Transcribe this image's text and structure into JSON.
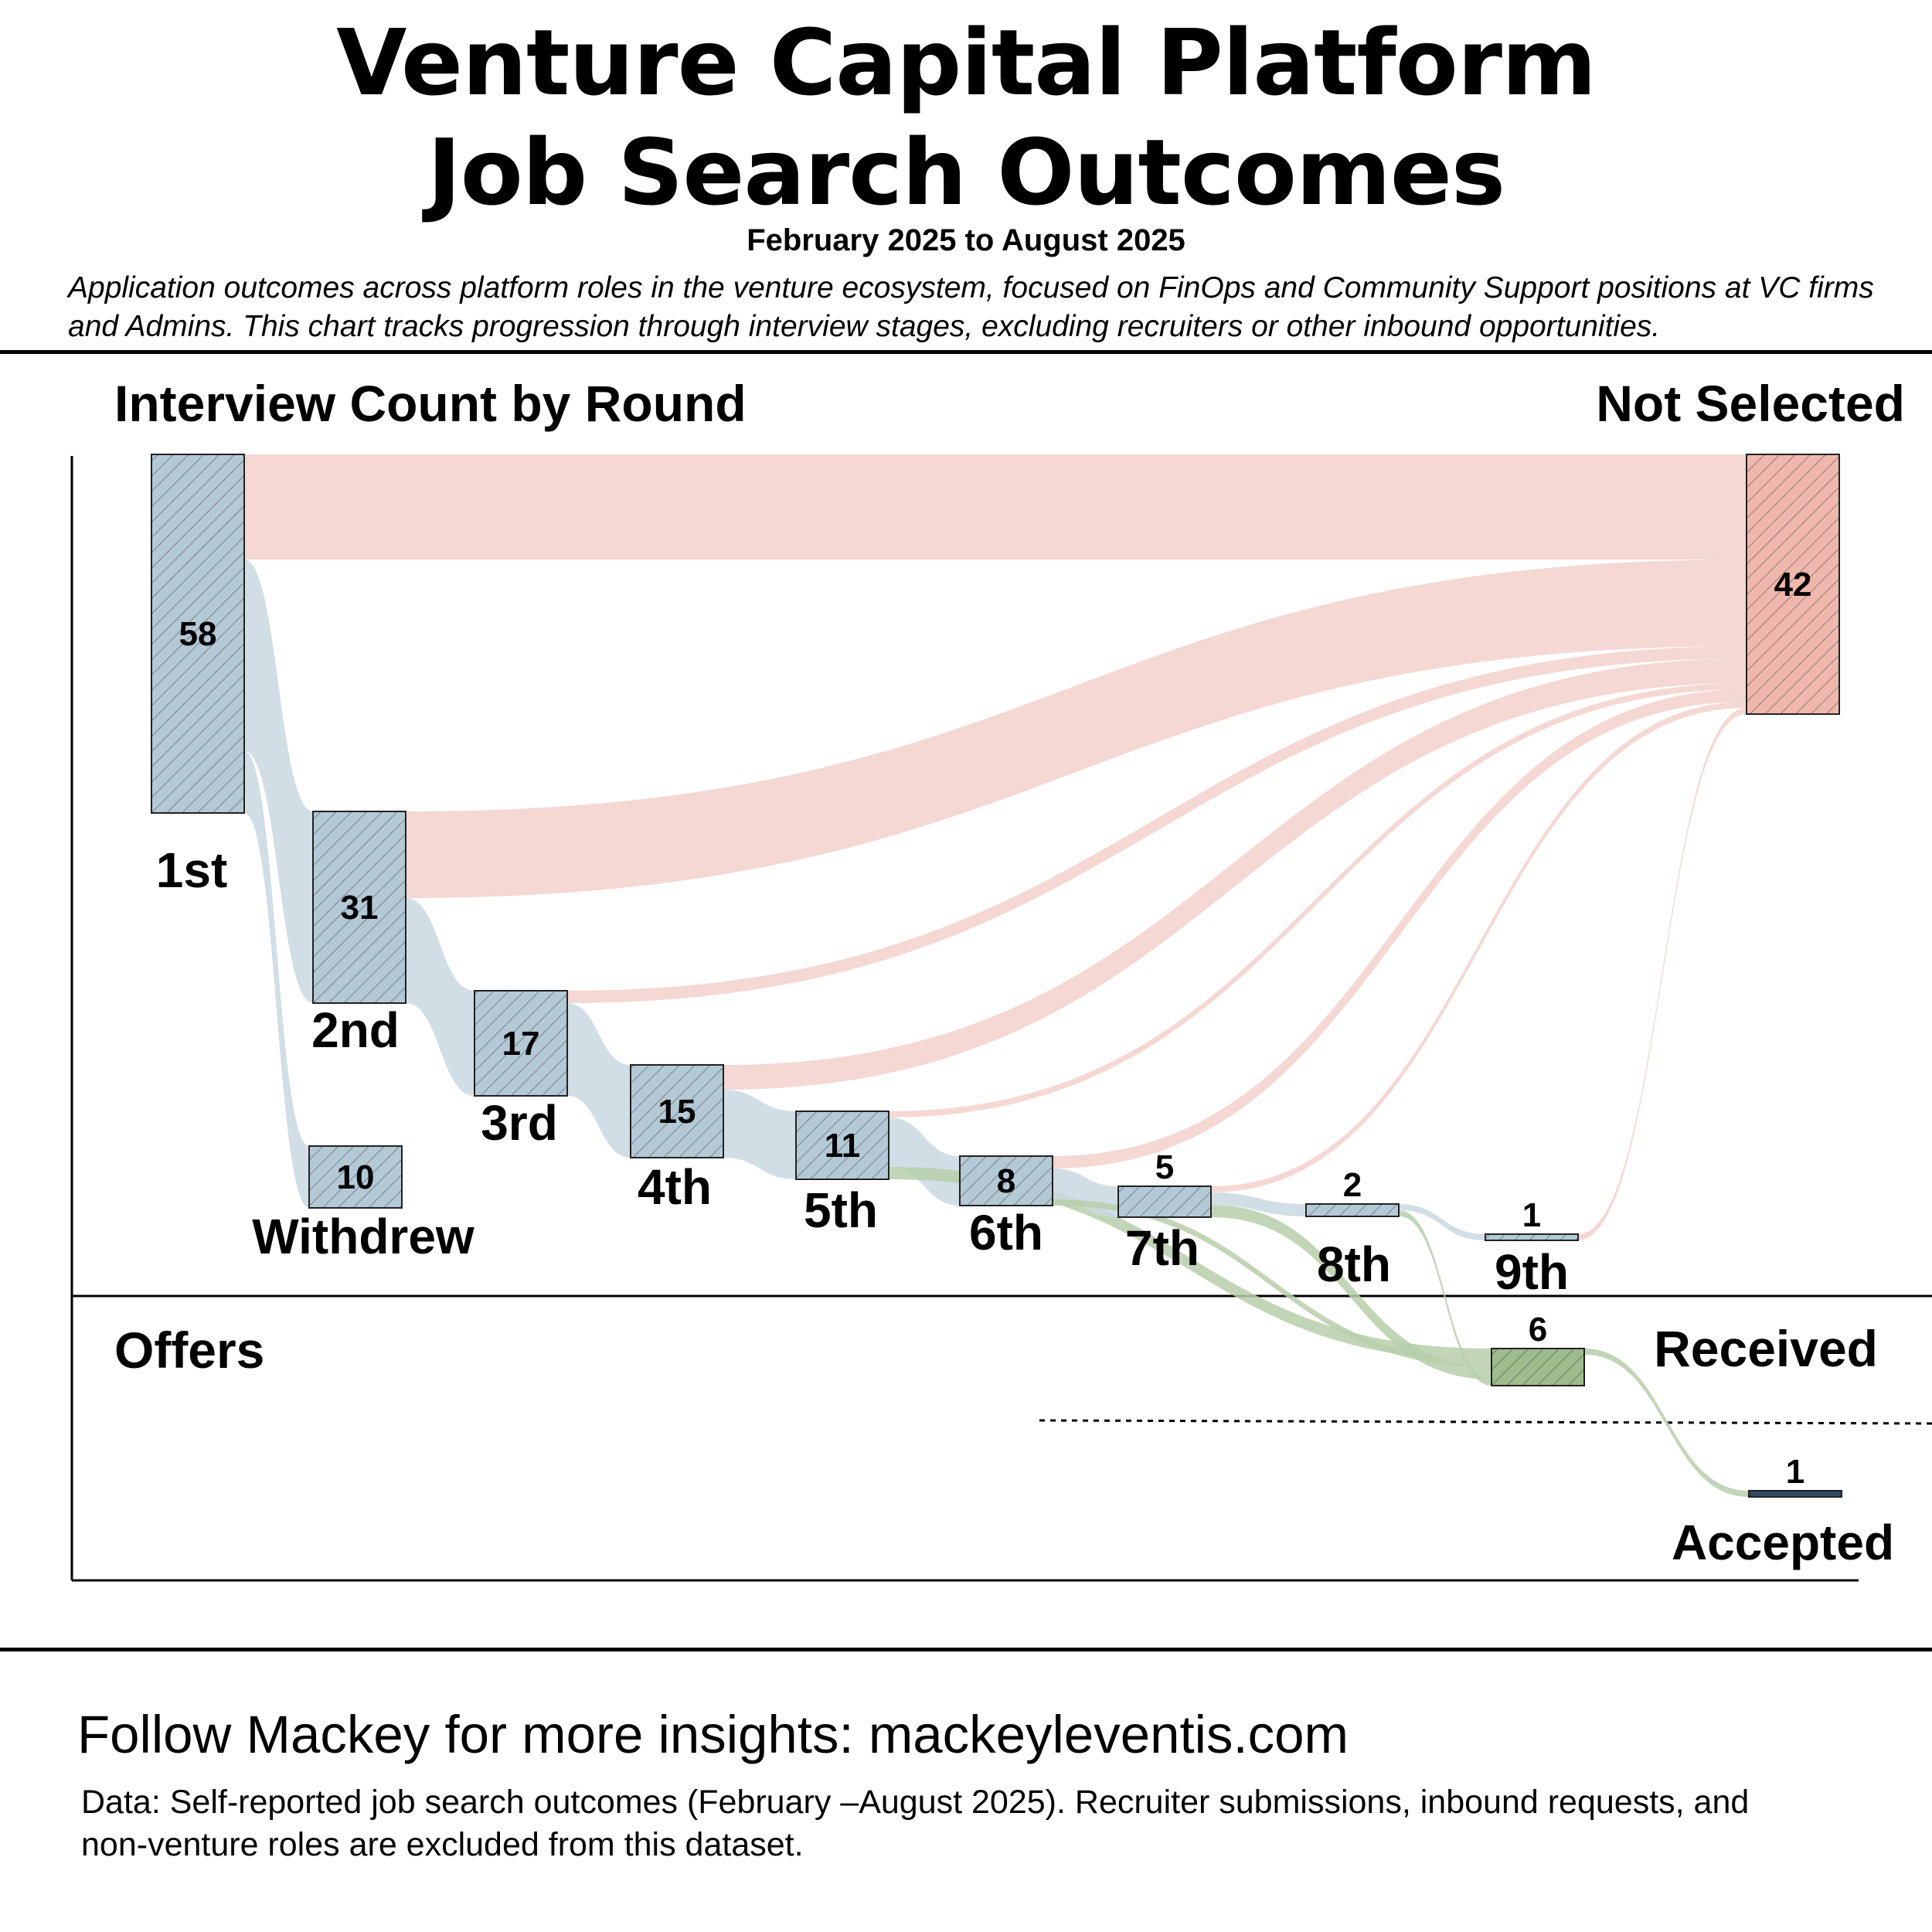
{
  "header": {
    "title_line1": "Venture Capital Platform",
    "title_line2": "Job Search Outcomes",
    "subtitle": "February 2025 to August 2025",
    "description": "Application outcomes across platform roles in the venture ecosystem, focused on FinOps and Community Support positions at VC firms and Admins. This chart tracks progression through interview stages, excluding recruiters or other inbound opportunities."
  },
  "chart_data": {
    "type": "sankey",
    "section_titles": {
      "interviews": "Interview Count by Round",
      "offers": "Offers",
      "not_selected": "Not Selected",
      "received": "Received"
    },
    "nodes": [
      {
        "id": "r1",
        "label": "1st",
        "value": 58
      },
      {
        "id": "r2",
        "label": "2nd",
        "value": 31
      },
      {
        "id": "r3",
        "label": "3rd",
        "value": 17
      },
      {
        "id": "r4",
        "label": "4th",
        "value": 15
      },
      {
        "id": "r5",
        "label": "5th",
        "value": 11
      },
      {
        "id": "r6",
        "label": "6th",
        "value": 8
      },
      {
        "id": "r7",
        "label": "7th",
        "value": 5
      },
      {
        "id": "r8",
        "label": "8th",
        "value": 2
      },
      {
        "id": "r9",
        "label": "9th",
        "value": 1
      },
      {
        "id": "withdrew",
        "label": "Withdrew",
        "value": 10
      },
      {
        "id": "notsel",
        "label": "Not Selected",
        "value": 42
      },
      {
        "id": "received",
        "label": "Received",
        "value": 6
      },
      {
        "id": "accepted",
        "label": "Accepted",
        "value": 1
      }
    ],
    "links": [
      {
        "source": "r1",
        "target": "notsel",
        "value": 17
      },
      {
        "source": "r1",
        "target": "r2",
        "value": 31
      },
      {
        "source": "r1",
        "target": "withdrew",
        "value": 10
      },
      {
        "source": "r2",
        "target": "notsel",
        "value": 14
      },
      {
        "source": "r2",
        "target": "r3",
        "value": 17
      },
      {
        "source": "r3",
        "target": "notsel",
        "value": 2
      },
      {
        "source": "r3",
        "target": "r4",
        "value": 15
      },
      {
        "source": "r4",
        "target": "notsel",
        "value": 4
      },
      {
        "source": "r4",
        "target": "r5",
        "value": 11
      },
      {
        "source": "r5",
        "target": "notsel",
        "value": 1
      },
      {
        "source": "r5",
        "target": "r6",
        "value": 8
      },
      {
        "source": "r5",
        "target": "received",
        "value": 2
      },
      {
        "source": "r6",
        "target": "notsel",
        "value": 2
      },
      {
        "source": "r6",
        "target": "r7",
        "value": 5
      },
      {
        "source": "r6",
        "target": "received",
        "value": 1
      },
      {
        "source": "r7",
        "target": "notsel",
        "value": 1
      },
      {
        "source": "r7",
        "target": "r8",
        "value": 2
      },
      {
        "source": "r7",
        "target": "received",
        "value": 2
      },
      {
        "source": "r8",
        "target": "r9",
        "value": 1
      },
      {
        "source": "r8",
        "target": "received",
        "value": 1
      },
      {
        "source": "r9",
        "target": "notsel",
        "value": 1
      },
      {
        "source": "received",
        "target": "accepted",
        "value": 1
      }
    ],
    "colors": {
      "round": "#b4c9d6",
      "round_flow": "#c9d8e2",
      "not_selected": "#f0b8ad",
      "not_selected_flow": "#e8a396",
      "offer": "#9fbc8c",
      "offer_flow": "#b7cfaa",
      "accepted": "#2f4a63"
    }
  },
  "footer": {
    "follow": "Follow Mackey for more insights: mackeyleventis.com",
    "note": "Data: Self-reported job search outcomes (February –August 2025). Recruiter submissions, inbound requests, and non-venture roles are excluded from this dataset."
  }
}
